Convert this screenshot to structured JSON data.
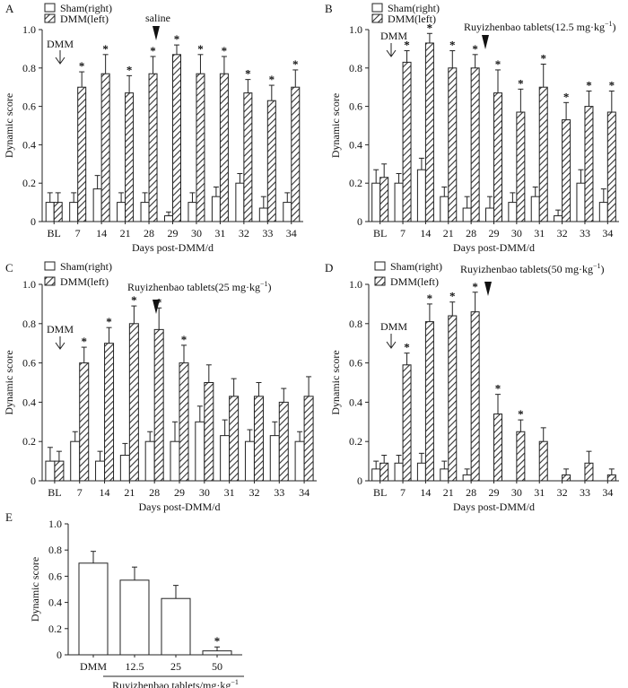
{
  "colors": {
    "axis": "#222222",
    "bar_sham": "#ffffff",
    "bar_dmm_stripe": "#333333",
    "stroke": "#222222"
  },
  "chart_data": [
    {
      "panel_label": "A",
      "type": "bar",
      "ylabel": "Dynamic score",
      "xlabel": "Days post-DMM/d",
      "ylim": [
        0,
        1.0
      ],
      "yticks": [
        "0",
        "0.2",
        "0.4",
        "0.6",
        "0.8",
        "1.0"
      ],
      "categories": [
        "BL",
        "7",
        "14",
        "21",
        "28",
        "29",
        "30",
        "31",
        "32",
        "33",
        "34"
      ],
      "legend": [
        "Sham(right)",
        "DMM(left)"
      ],
      "series": [
        {
          "name": "Sham(right)",
          "values": [
            0.1,
            0.1,
            0.17,
            0.1,
            0.1,
            0.03,
            0.1,
            0.13,
            0.2,
            0.07,
            0.1
          ],
          "errors": [
            0.05,
            0.05,
            0.07,
            0.05,
            0.05,
            0.02,
            0.05,
            0.05,
            0.05,
            0.06,
            0.05
          ]
        },
        {
          "name": "DMM(left)",
          "values": [
            0.1,
            0.7,
            0.77,
            0.67,
            0.77,
            0.87,
            0.77,
            0.77,
            0.67,
            0.63,
            0.7
          ],
          "errors": [
            0.05,
            0.08,
            0.1,
            0.09,
            0.09,
            0.05,
            0.1,
            0.09,
            0.07,
            0.08,
            0.09
          ]
        }
      ],
      "stars": [
        "",
        "*",
        "*",
        "*",
        "*",
        "*",
        "*",
        "*",
        "*",
        "*",
        "*"
      ],
      "annotations": [
        {
          "text": "DMM",
          "at": "7",
          "kind": "down-arrow"
        },
        {
          "text": "saline",
          "at": "29",
          "kind": "triangle"
        }
      ]
    },
    {
      "panel_label": "B",
      "type": "bar",
      "ylabel": "Dynamic score",
      "xlabel": "Days post-DMM/d",
      "ylim": [
        0,
        1.0
      ],
      "yticks": [
        "0",
        "0.2",
        "0.4",
        "0.6",
        "0.8",
        "1.0"
      ],
      "categories": [
        "BL",
        "7",
        "14",
        "21",
        "28",
        "29",
        "30",
        "31",
        "32",
        "33",
        "34"
      ],
      "legend": [
        "Sham(right)",
        "DMM(left)"
      ],
      "series": [
        {
          "name": "Sham(right)",
          "values": [
            0.2,
            0.2,
            0.27,
            0.13,
            0.07,
            0.07,
            0.1,
            0.13,
            0.03,
            0.2,
            0.1
          ],
          "errors": [
            0.07,
            0.05,
            0.06,
            0.05,
            0.06,
            0.06,
            0.05,
            0.05,
            0.03,
            0.07,
            0.07
          ]
        },
        {
          "name": "DMM(left)",
          "values": [
            0.23,
            0.83,
            0.93,
            0.8,
            0.8,
            0.67,
            0.57,
            0.7,
            0.53,
            0.6,
            0.57
          ],
          "errors": [
            0.07,
            0.06,
            0.05,
            0.09,
            0.07,
            0.12,
            0.12,
            0.12,
            0.09,
            0.08,
            0.11
          ]
        }
      ],
      "stars": [
        "",
        "*",
        "*",
        "*",
        "*",
        "*",
        "*",
        "*",
        "*",
        "*",
        "*"
      ],
      "annotations": [
        {
          "text": "DMM",
          "at": "7",
          "kind": "down-arrow"
        },
        {
          "text": "Ruyizhenbao tablets(12.5 mg·kg",
          "sup": "−1",
          "close": ")",
          "at": "29",
          "kind": "triangle"
        }
      ]
    },
    {
      "panel_label": "C",
      "type": "bar",
      "ylabel": "Dynamic score",
      "xlabel": "Days post-DMM/d",
      "ylim": [
        0,
        1.0
      ],
      "yticks": [
        "0",
        "0.2",
        "0.4",
        "0.6",
        "0.8",
        "1.0"
      ],
      "categories": [
        "BL",
        "7",
        "14",
        "21",
        "28",
        "29",
        "30",
        "31",
        "32",
        "33",
        "34"
      ],
      "legend": [
        "Sham(right)",
        "DMM(left)"
      ],
      "series": [
        {
          "name": "Sham(right)",
          "values": [
            0.1,
            0.2,
            0.1,
            0.13,
            0.2,
            0.2,
            0.3,
            0.23,
            0.2,
            0.23,
            0.2
          ],
          "errors": [
            0.07,
            0.05,
            0.05,
            0.06,
            0.05,
            0.1,
            0.08,
            0.08,
            0.06,
            0.07,
            0.05
          ]
        },
        {
          "name": "DMM(left)",
          "values": [
            0.1,
            0.6,
            0.7,
            0.8,
            0.77,
            0.6,
            0.5,
            0.43,
            0.43,
            0.4,
            0.43
          ],
          "errors": [
            0.05,
            0.08,
            0.08,
            0.09,
            0.11,
            0.09,
            0.09,
            0.09,
            0.07,
            0.07,
            0.1
          ]
        }
      ],
      "stars": [
        "",
        "*",
        "*",
        "*",
        "*",
        "*",
        "",
        "",
        "",
        "",
        ""
      ],
      "annotations": [
        {
          "text": "DMM",
          "at": "7",
          "kind": "down-arrow"
        },
        {
          "text": "Ruyizhenbao tablets(25 mg·kg",
          "sup": "−1",
          "close": ")",
          "at": "29",
          "kind": "triangle"
        }
      ]
    },
    {
      "panel_label": "D",
      "type": "bar",
      "ylabel": "Dynamic score",
      "xlabel": "Days post-DMM/d",
      "ylim": [
        0,
        1.0
      ],
      "yticks": [
        "0",
        "0.2",
        "0.4",
        "0.6",
        "0.8",
        "1.0"
      ],
      "categories": [
        "BL",
        "7",
        "14",
        "21",
        "28",
        "29",
        "30",
        "31",
        "32",
        "33",
        "34"
      ],
      "legend": [
        "Sham(right)",
        "DMM(left)"
      ],
      "series": [
        {
          "name": "Sham(right)",
          "values": [
            0.06,
            0.09,
            0.09,
            0.06,
            0.03,
            0,
            0,
            0,
            0,
            0,
            0
          ],
          "errors": [
            0.04,
            0.04,
            0.05,
            0.04,
            0.03,
            0,
            0,
            0,
            0,
            0,
            0
          ]
        },
        {
          "name": "DMM(left)",
          "values": [
            0.09,
            0.59,
            0.81,
            0.84,
            0.86,
            0.34,
            0.25,
            0.2,
            0.03,
            0.09,
            0.03
          ],
          "errors": [
            0.04,
            0.06,
            0.09,
            0.07,
            0.1,
            0.1,
            0.06,
            0.07,
            0.03,
            0.06,
            0.03
          ]
        }
      ],
      "stars": [
        "",
        "*",
        "*",
        "*",
        "*",
        "*",
        "*",
        "",
        "",
        "",
        ""
      ],
      "annotations": [
        {
          "text": "DMM",
          "at": "7",
          "kind": "down-arrow"
        },
        {
          "text": "Ruyizhenbao tablets(50 mg·kg",
          "sup": "−1",
          "close": ")",
          "at": "29",
          "kind": "triangle"
        }
      ]
    },
    {
      "panel_label": "E",
      "type": "bar",
      "ylabel": "Dynamic score",
      "xlabel": "Ruyizhenbao tablets/mg·kg",
      "xlabel_sup": "−1",
      "ylim": [
        0,
        1.0
      ],
      "yticks": [
        "0",
        "0.2",
        "0.4",
        "0.6",
        "0.8",
        "1.0"
      ],
      "categories": [
        "DMM",
        "12.5",
        "25",
        "50"
      ],
      "series": [
        {
          "name": "Dynamic score",
          "values": [
            0.7,
            0.57,
            0.43,
            0.03
          ],
          "errors": [
            0.09,
            0.1,
            0.1,
            0.03
          ]
        }
      ],
      "stars": [
        "",
        "",
        "",
        "*"
      ]
    }
  ]
}
